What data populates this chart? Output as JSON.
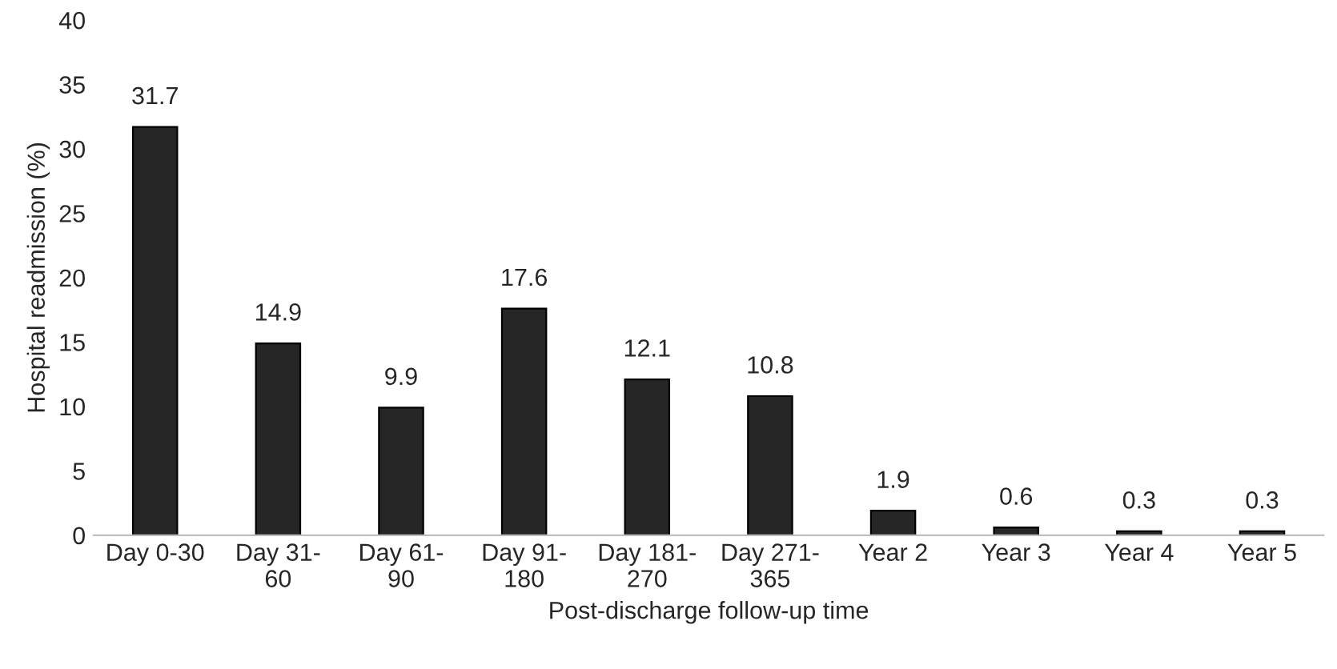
{
  "chart_data": {
    "type": "bar",
    "xlabel": "Post-discharge follow-up time",
    "ylabel": "Hospital readmission (%)",
    "categories": [
      "Day 0-30",
      "Day 31-\n60",
      "Day 61-\n90",
      "Day 91-\n180",
      "Day 181-\n270",
      "Day 271-\n365",
      "Year 2",
      "Year 3",
      "Year 4",
      "Year 5"
    ],
    "values": [
      31.7,
      14.9,
      9.9,
      17.6,
      12.1,
      10.8,
      1.9,
      0.6,
      0.3,
      0.3
    ],
    "color": "#262626",
    "ylim": [
      0,
      40
    ],
    "yticks": [
      0,
      5,
      10,
      15,
      20,
      25,
      30,
      35,
      40
    ],
    "data_labels": true,
    "grid": false,
    "legend": false
  }
}
